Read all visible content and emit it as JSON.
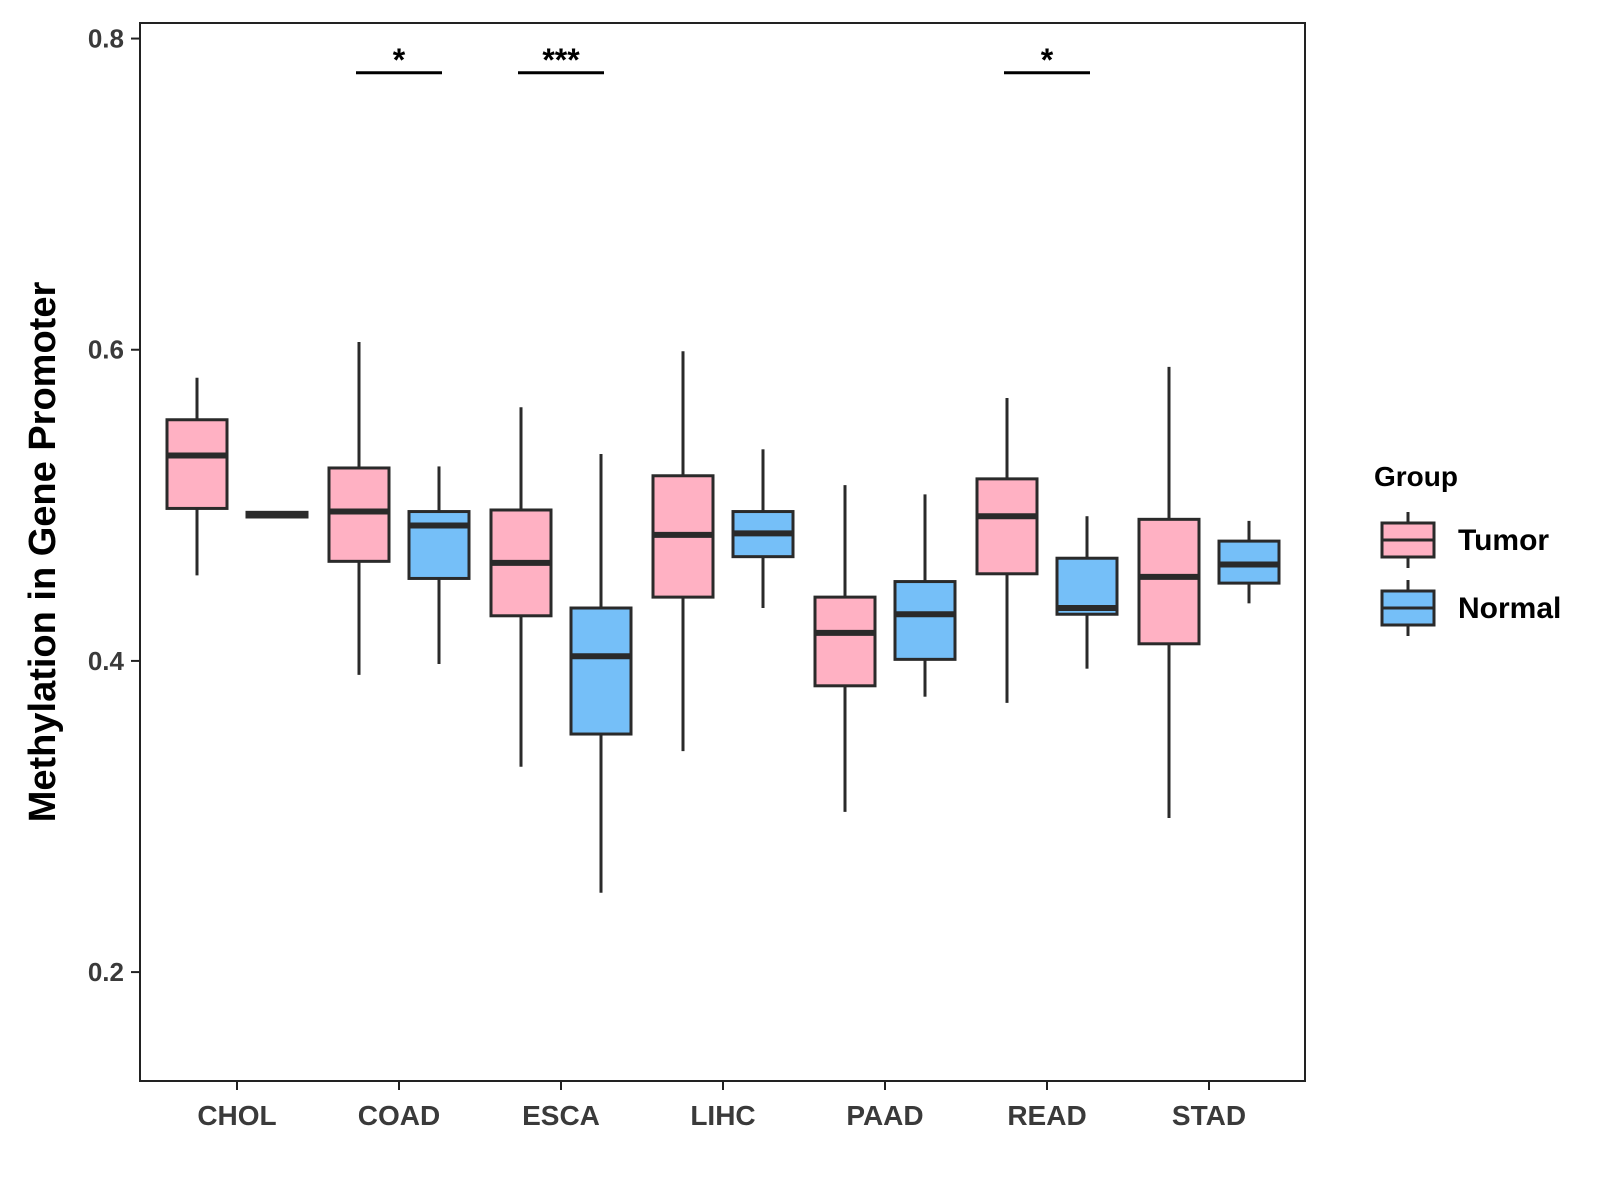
{
  "chart_data": {
    "type": "boxplot",
    "title": "",
    "xlabel": "",
    "ylabel": "Methylation in Gene Promoter",
    "ylim": [
      0.13,
      0.81
    ],
    "yticks": [
      0.2,
      0.4,
      0.6,
      0.8
    ],
    "ytick_labels": [
      "0.2",
      "0.4",
      "0.6",
      "0.8"
    ],
    "grid": false,
    "legend_position": "right",
    "legend_title": "Group",
    "categories": [
      "CHOL",
      "COAD",
      "ESCA",
      "LIHC",
      "PAAD",
      "READ",
      "STAD"
    ],
    "series": [
      {
        "name": "Tumor",
        "color": "#ffb1c3",
        "boxes": [
          {
            "category": "CHOL",
            "min": 0.455,
            "q1": 0.498,
            "median": 0.532,
            "q3": 0.555,
            "max": 0.582
          },
          {
            "category": "COAD",
            "min": 0.391,
            "q1": 0.464,
            "median": 0.496,
            "q3": 0.524,
            "max": 0.605
          },
          {
            "category": "ESCA",
            "min": 0.332,
            "q1": 0.429,
            "median": 0.463,
            "q3": 0.497,
            "max": 0.563
          },
          {
            "category": "LIHC",
            "min": 0.342,
            "q1": 0.441,
            "median": 0.481,
            "q3": 0.519,
            "max": 0.599
          },
          {
            "category": "PAAD",
            "min": 0.303,
            "q1": 0.384,
            "median": 0.418,
            "q3": 0.441,
            "max": 0.513
          },
          {
            "category": "READ",
            "min": 0.373,
            "q1": 0.456,
            "median": 0.493,
            "q3": 0.517,
            "max": 0.569
          },
          {
            "category": "STAD",
            "min": 0.299,
            "q1": 0.411,
            "median": 0.454,
            "q3": 0.491,
            "max": 0.589
          }
        ]
      },
      {
        "name": "Normal",
        "color": "#75bff8",
        "boxes": [
          {
            "category": "CHOL",
            "min": 0.4925,
            "q1": 0.4925,
            "median": 0.494,
            "q3": 0.4955,
            "max": 0.4955
          },
          {
            "category": "COAD",
            "min": 0.398,
            "q1": 0.453,
            "median": 0.487,
            "q3": 0.496,
            "max": 0.525
          },
          {
            "category": "ESCA",
            "min": 0.251,
            "q1": 0.353,
            "median": 0.403,
            "q3": 0.434,
            "max": 0.533
          },
          {
            "category": "LIHC",
            "min": 0.434,
            "q1": 0.467,
            "median": 0.482,
            "q3": 0.496,
            "max": 0.536
          },
          {
            "category": "PAAD",
            "min": 0.377,
            "q1": 0.401,
            "median": 0.43,
            "q3": 0.451,
            "max": 0.507
          },
          {
            "category": "READ",
            "min": 0.395,
            "q1": 0.43,
            "median": 0.434,
            "q3": 0.466,
            "max": 0.493
          },
          {
            "category": "STAD",
            "min": 0.437,
            "q1": 0.45,
            "median": 0.462,
            "q3": 0.477,
            "max": 0.49
          }
        ]
      }
    ],
    "annotations": [
      {
        "category": "COAD",
        "label": "*",
        "y": 0.778
      },
      {
        "category": "ESCA",
        "label": "***",
        "y": 0.778
      },
      {
        "category": "READ",
        "label": "*",
        "y": 0.778
      }
    ]
  }
}
